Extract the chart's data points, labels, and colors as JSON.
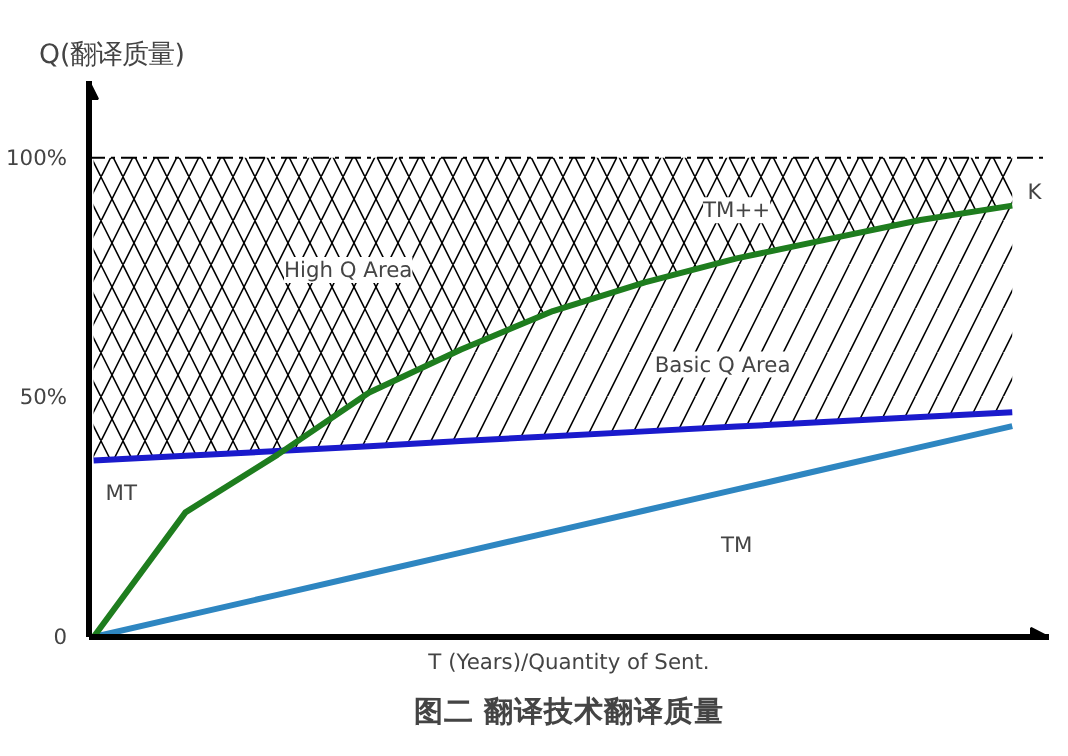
{
  "chart_data": {
    "type": "line",
    "title": "图二 翻译技术翻译质量",
    "xlabel": "T (Years)/Quantity of Sent.",
    "ylabel": "Q(翻译质量)",
    "categories": [
      null,
      null,
      null,
      null,
      null,
      null,
      null,
      null,
      null,
      null,
      null
    ],
    "series": [
      {
        "name": "MT",
        "color": "#1a1acc",
        "values": [
          36.8,
          37.8,
          38.8,
          39.8,
          40.9,
          41.9,
          42.9,
          43.9,
          44.9,
          45.9,
          46.9
        ]
      },
      {
        "name": "TM",
        "color": "#2e86c1",
        "values": [
          0,
          4.4,
          8.8,
          13.2,
          17.6,
          22,
          26.4,
          30.8,
          35.2,
          39.6,
          44
        ]
      },
      {
        "name": "TM++",
        "color": "#1e7d1e",
        "values": [
          0,
          26,
          38,
          51,
          60,
          68,
          74,
          79,
          83,
          87,
          90
        ]
      }
    ],
    "ylim": [
      0,
      116
    ],
    "yticks": [
      0,
      {
        "value": 50,
        "label": "50%"
      },
      {
        "value": 100,
        "label": "100%"
      }
    ],
    "ref_lines": [
      {
        "axis": "y",
        "value": 100,
        "line_style": "dashed",
        "color": "#000000"
      }
    ],
    "annotations": [
      "High Q Area",
      "Basic Q Area",
      "K"
    ],
    "grid": false,
    "tick_labels": "y"
  }
}
